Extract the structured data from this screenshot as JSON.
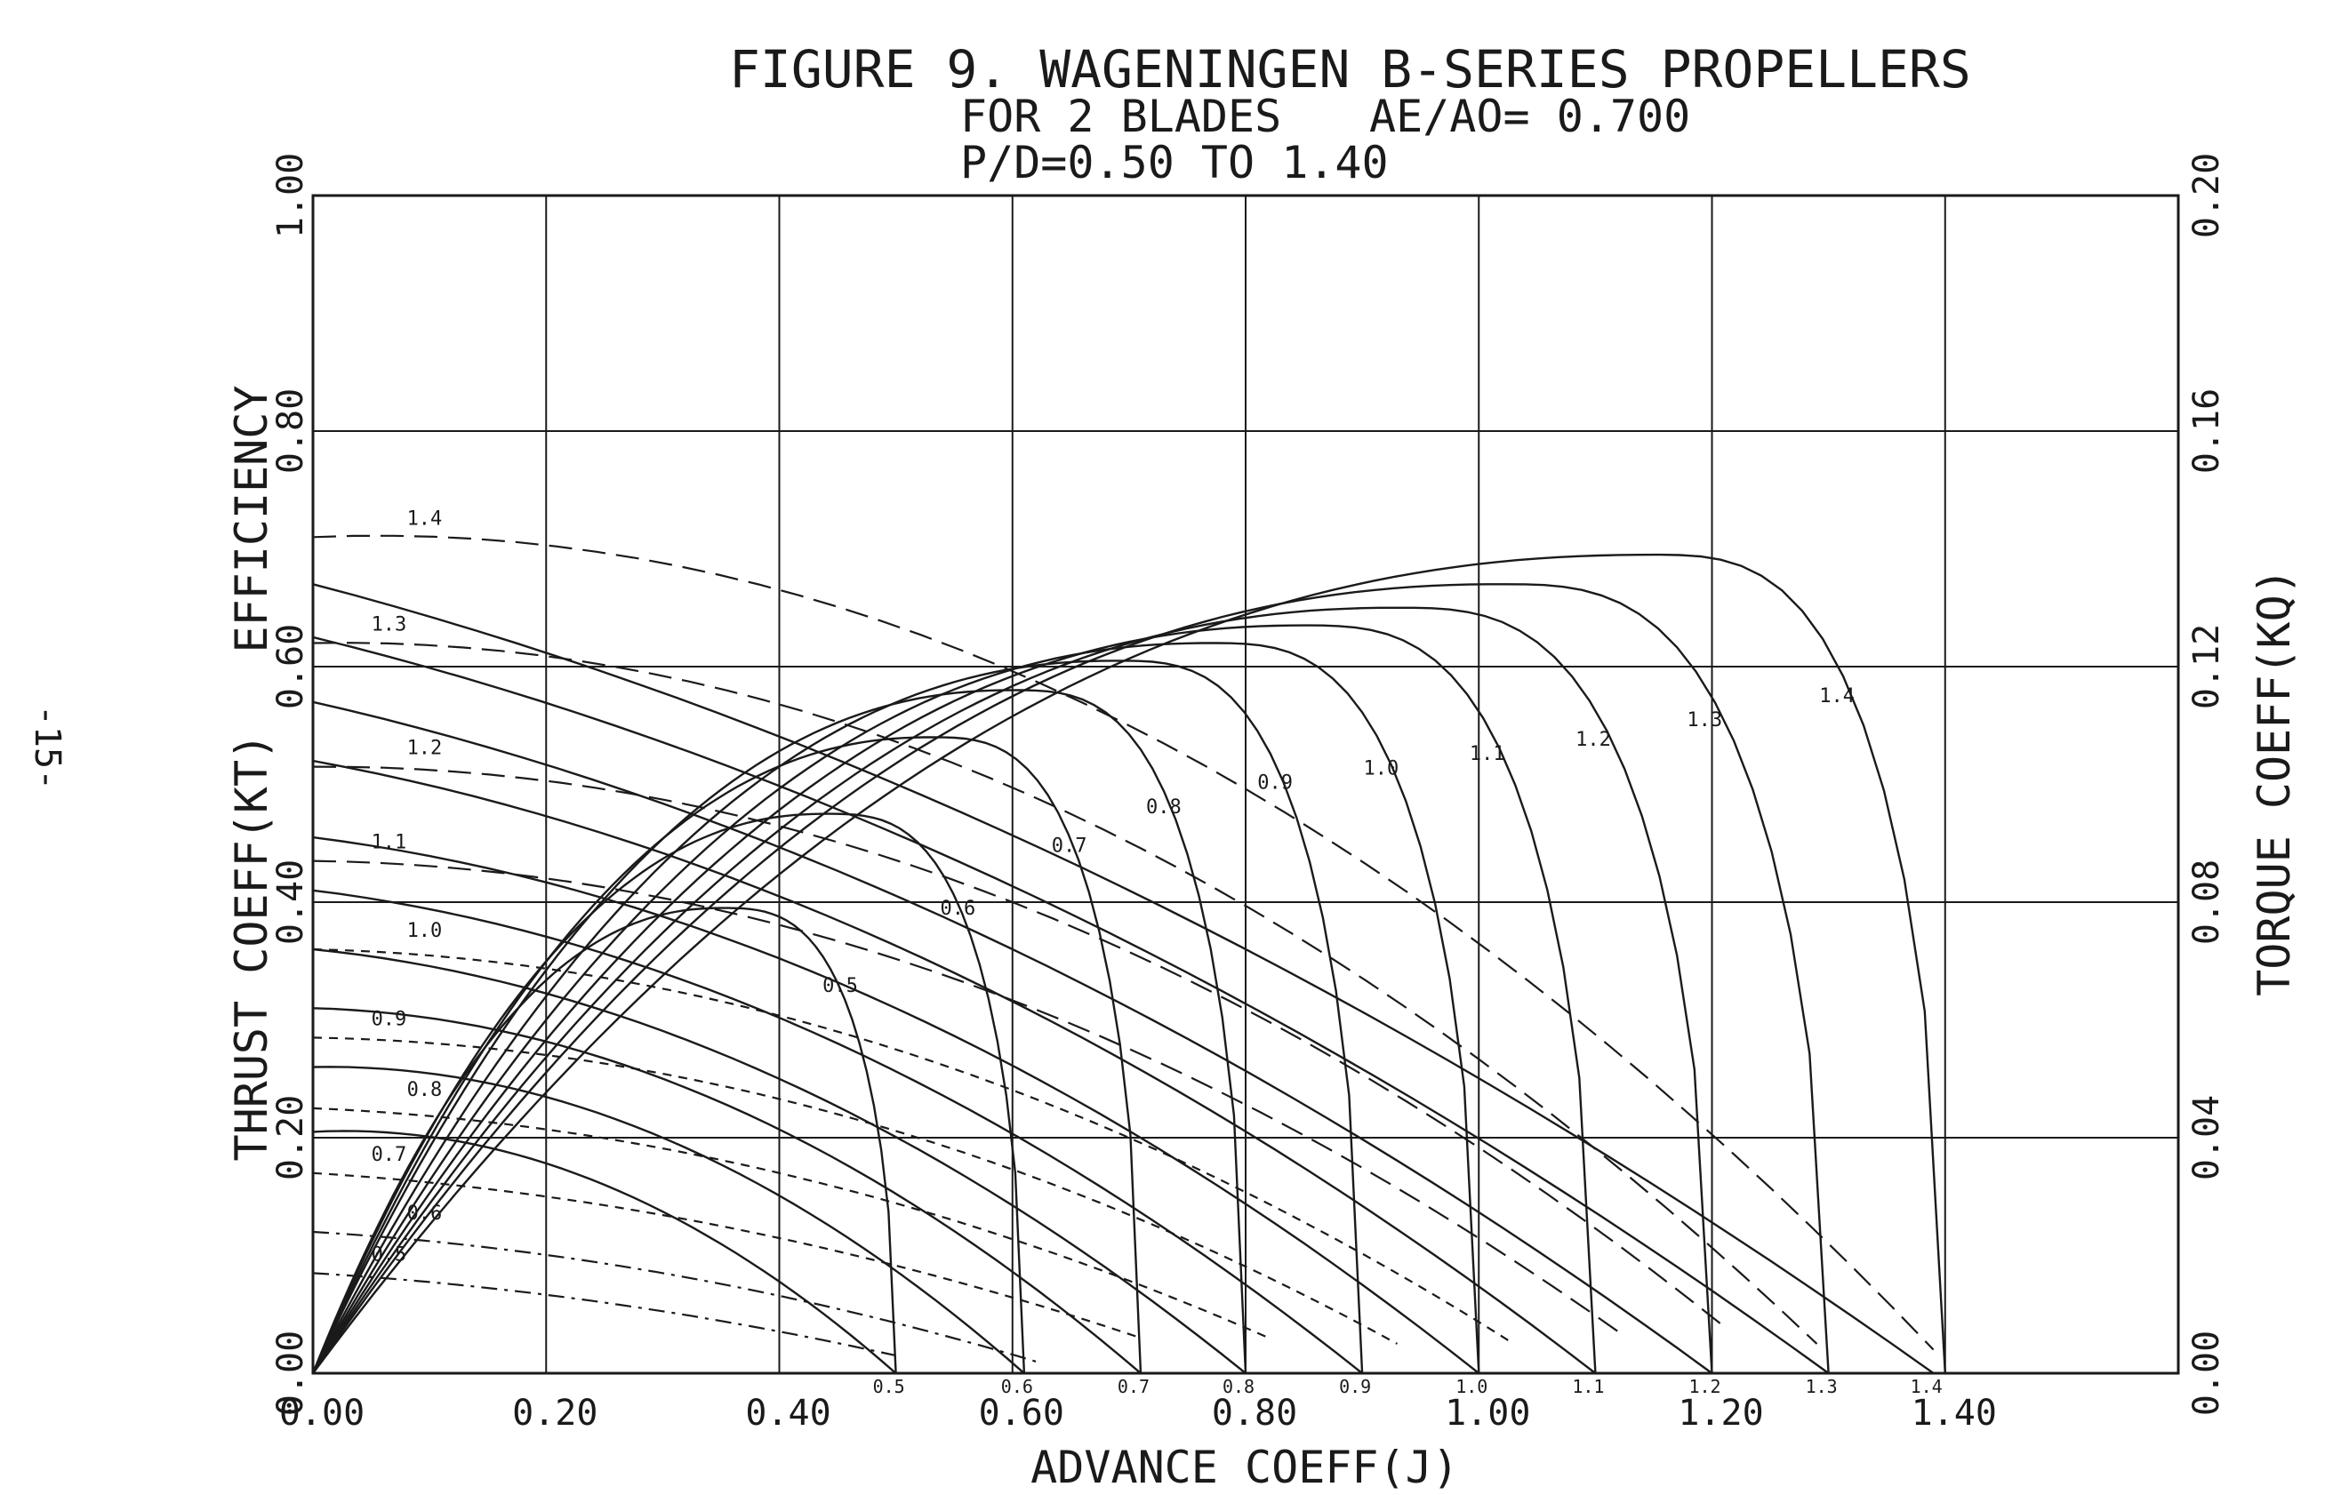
{
  "page_number": "-15-",
  "chart_data": {
    "type": "line",
    "title": "FIGURE 9. WAGENINGEN B-SERIES PROPELLERS",
    "subtitle_lines": [
      "FOR 2 BLADES",
      "AE/AO= 0.700",
      "P/D=0.50 TO 1.40"
    ],
    "xlabel": "ADVANCE COEFF(J)",
    "ylabel_left": "THRUST COEFF(KT)   EFFICIENCY",
    "ylabel_right": "TORQUE COEFF(KQ)",
    "xlim": [
      0,
      1.6
    ],
    "ylim_left": [
      0,
      1.0
    ],
    "ylim_right": [
      0,
      0.2
    ],
    "grid": true,
    "x_ticks": [
      {
        "value": 0.0,
        "label": "0.00"
      },
      {
        "value": 0.2,
        "label": "0.20"
      },
      {
        "value": 0.4,
        "label": "0.40"
      },
      {
        "value": 0.6,
        "label": "0.60"
      },
      {
        "value": 0.8,
        "label": "0.80"
      },
      {
        "value": 1.0,
        "label": "1.00"
      },
      {
        "value": 1.2,
        "label": "1.20"
      },
      {
        "value": 1.4,
        "label": "1.40"
      }
    ],
    "y_ticks_left": [
      {
        "value": 0.0,
        "label": "0.00"
      },
      {
        "value": 0.2,
        "label": "0.20"
      },
      {
        "value": 0.4,
        "label": "0.40"
      },
      {
        "value": 0.6,
        "label": "0.60"
      },
      {
        "value": 0.8,
        "label": "0.80"
      },
      {
        "value": 1.0,
        "label": "1.00"
      }
    ],
    "y_ticks_right": [
      {
        "value": 0.0,
        "label": "0.00"
      },
      {
        "value": 0.04,
        "label": "0.04"
      },
      {
        "value": 0.08,
        "label": "0.08"
      },
      {
        "value": 0.12,
        "label": "0.12"
      },
      {
        "value": 0.16,
        "label": "0.16"
      },
      {
        "value": 0.2,
        "label": "0.20"
      }
    ],
    "kt_curves": [
      {
        "pd": "0.5",
        "label": "0.5",
        "points": [
          [
            0,
            0.205
          ],
          [
            0.25,
            0.16
          ],
          [
            0.5,
            0.0
          ]
        ]
      },
      {
        "pd": "0.6",
        "label": "0.6",
        "points": [
          [
            0,
            0.26
          ],
          [
            0.3,
            0.2
          ],
          [
            0.61,
            0.0
          ]
        ]
      },
      {
        "pd": "0.7",
        "label": "0.7",
        "points": [
          [
            0,
            0.31
          ],
          [
            0.35,
            0.23
          ],
          [
            0.71,
            0.0
          ]
        ]
      },
      {
        "pd": "0.8",
        "label": "0.8",
        "points": [
          [
            0,
            0.36
          ],
          [
            0.4,
            0.25
          ],
          [
            0.8,
            0.0
          ]
        ]
      },
      {
        "pd": "0.9",
        "label": "0.9",
        "points": [
          [
            0,
            0.41
          ],
          [
            0.45,
            0.28
          ],
          [
            0.9,
            0.0
          ]
        ]
      },
      {
        "pd": "1.0",
        "label": "1.0",
        "points": [
          [
            0,
            0.455
          ],
          [
            0.5,
            0.31
          ],
          [
            1.0,
            0.0
          ]
        ]
      },
      {
        "pd": "1.1",
        "label": "1.1",
        "points": [
          [
            0,
            0.52
          ],
          [
            0.55,
            0.34
          ],
          [
            1.1,
            0.0
          ]
        ]
      },
      {
        "pd": "1.2",
        "label": "1.2",
        "points": [
          [
            0,
            0.57
          ],
          [
            0.6,
            0.36
          ],
          [
            1.2,
            0.0
          ]
        ]
      },
      {
        "pd": "1.3",
        "label": "1.3",
        "points": [
          [
            0,
            0.625
          ],
          [
            0.65,
            0.39
          ],
          [
            1.3,
            0.0
          ]
        ]
      },
      {
        "pd": "1.4",
        "label": "1.4",
        "points": [
          [
            0,
            0.67
          ],
          [
            0.7,
            0.41
          ],
          [
            1.39,
            0.0
          ]
        ]
      }
    ],
    "kq_curves": [
      {
        "pd": "0.5",
        "label": "0.5",
        "points": [
          [
            0,
            0.017
          ],
          [
            0.25,
            0.012
          ],
          [
            0.5,
            0.003
          ]
        ]
      },
      {
        "pd": "0.6",
        "label": "0.6",
        "points": [
          [
            0,
            0.024
          ],
          [
            0.3,
            0.017
          ],
          [
            0.62,
            0.002
          ]
        ]
      },
      {
        "pd": "0.7",
        "label": "0.7",
        "points": [
          [
            0,
            0.034
          ],
          [
            0.35,
            0.025
          ],
          [
            0.71,
            0.006
          ]
        ]
      },
      {
        "pd": "0.8",
        "label": "0.8",
        "points": [
          [
            0,
            0.045
          ],
          [
            0.4,
            0.034
          ],
          [
            0.82,
            0.006
          ]
        ]
      },
      {
        "pd": "0.9",
        "label": "0.9",
        "points": [
          [
            0,
            0.057
          ],
          [
            0.45,
            0.044
          ],
          [
            0.93,
            0.005
          ]
        ]
      },
      {
        "pd": "1.0",
        "label": "1.0",
        "points": [
          [
            0,
            0.072
          ],
          [
            0.5,
            0.055
          ],
          [
            1.03,
            0.005
          ]
        ]
      },
      {
        "pd": "1.1",
        "label": "1.1",
        "points": [
          [
            0,
            0.087
          ],
          [
            0.55,
            0.067
          ],
          [
            1.12,
            0.007
          ]
        ]
      },
      {
        "pd": "1.2",
        "label": "1.2",
        "points": [
          [
            0,
            0.103
          ],
          [
            0.6,
            0.08
          ],
          [
            1.21,
            0.008
          ]
        ]
      },
      {
        "pd": "1.3",
        "label": "1.3",
        "points": [
          [
            0,
            0.124
          ],
          [
            0.65,
            0.095
          ],
          [
            1.29,
            0.005
          ]
        ]
      },
      {
        "pd": "1.4",
        "label": "1.4",
        "points": [
          [
            0,
            0.142
          ],
          [
            0.7,
            0.11
          ],
          [
            1.39,
            0.004
          ]
        ]
      }
    ],
    "efficiency_curves": [
      {
        "pd": "0.5",
        "label": "0.5",
        "jmax": 0.5,
        "peak_j": 0.35,
        "peak_eta": 0.395
      },
      {
        "pd": "0.6",
        "label": "0.6",
        "jmax": 0.61,
        "peak_j": 0.44,
        "peak_eta": 0.475
      },
      {
        "pd": "0.7",
        "label": "0.7",
        "jmax": 0.71,
        "peak_j": 0.53,
        "peak_eta": 0.54
      },
      {
        "pd": "0.8",
        "label": "0.8",
        "jmax": 0.8,
        "peak_j": 0.6,
        "peak_eta": 0.58
      },
      {
        "pd": "0.9",
        "label": "0.9",
        "jmax": 0.9,
        "peak_j": 0.69,
        "peak_eta": 0.605
      },
      {
        "pd": "1.0",
        "label": "1.0",
        "jmax": 1.0,
        "peak_j": 0.77,
        "peak_eta": 0.62
      },
      {
        "pd": "1.1",
        "label": "1.1",
        "jmax": 1.1,
        "peak_j": 0.85,
        "peak_eta": 0.635
      },
      {
        "pd": "1.2",
        "label": "1.2",
        "jmax": 1.2,
        "peak_j": 0.93,
        "peak_eta": 0.65
      },
      {
        "pd": "1.3",
        "label": "1.3",
        "jmax": 1.3,
        "peak_j": 1.02,
        "peak_eta": 0.67
      },
      {
        "pd": "1.4",
        "label": "1.4",
        "jmax": 1.4,
        "peak_j": 1.15,
        "peak_eta": 0.695
      }
    ]
  }
}
